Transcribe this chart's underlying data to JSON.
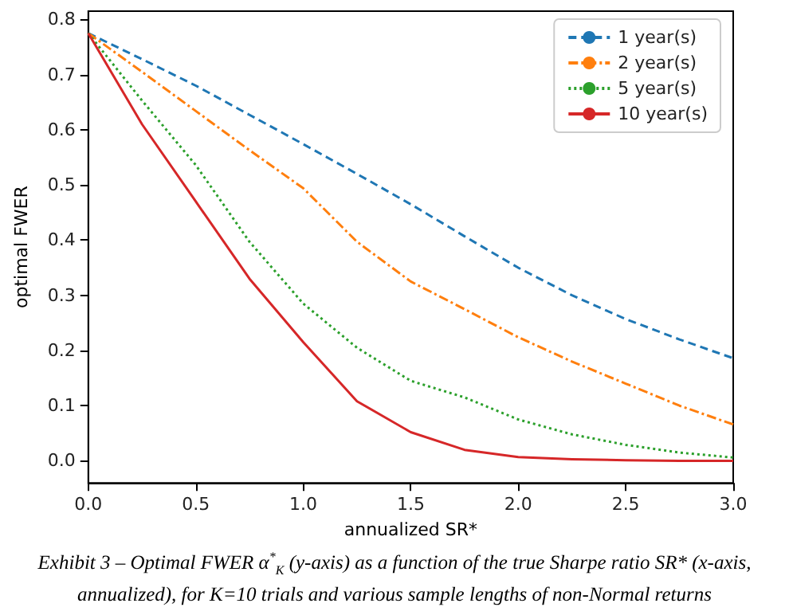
{
  "chart_data": {
    "type": "line",
    "xlabel": "annualized SR*",
    "ylabel": "optimal FWER",
    "annotations": [
      "Exhibit 3 – Optimal FWER α$^{*}$$_{K}$ (y-axis) as a function of the true Sharpe ratio SR* (x-axis, annualized), for K=10 trials and various sample lengths of non-Normal returns"
    ],
    "x": [
      0,
      0.25,
      0.5,
      0.75,
      1.0,
      1.25,
      1.5,
      1.75,
      2.0,
      2.25,
      2.5,
      2.75,
      3.0
    ],
    "series": [
      {
        "name": "1 year(s)",
        "color": "#1f77b4",
        "line_style": "dashed",
        "values": [
          0.775,
          0.728,
          0.68,
          0.627,
          0.574,
          0.52,
          0.465,
          0.407,
          0.35,
          0.3,
          0.257,
          0.22,
          0.186
        ]
      },
      {
        "name": "2 year(s)",
        "color": "#ff7f0e",
        "line_style": "dashdot",
        "values": [
          0.775,
          0.705,
          0.634,
          0.563,
          0.494,
          0.397,
          0.325,
          0.275,
          0.224,
          0.18,
          0.14,
          0.1,
          0.066
        ]
      },
      {
        "name": "5 year(s)",
        "color": "#2ca02c",
        "line_style": "dotted",
        "values": [
          0.775,
          0.653,
          0.536,
          0.397,
          0.285,
          0.205,
          0.145,
          0.115,
          0.075,
          0.048,
          0.029,
          0.015,
          0.006
        ]
      },
      {
        "name": "10 year(s)",
        "color": "#d62728",
        "line_style": "solid",
        "values": [
          0.775,
          0.61,
          0.47,
          0.33,
          0.215,
          0.108,
          0.052,
          0.02,
          0.007,
          0.003,
          0.001,
          0.0,
          0.0
        ]
      }
    ],
    "xlim": [
      0,
      3
    ],
    "xticks": [
      {
        "value": 0,
        "label": "0.0"
      },
      0.5,
      {
        "value": 1,
        "label": "1.0"
      },
      1.5,
      {
        "value": 2,
        "label": "2.0"
      },
      2.5,
      {
        "value": 3,
        "label": "3.0"
      }
    ],
    "ylim": [
      -0.04,
      0.815
    ],
    "yticks": [
      {
        "value": 0,
        "label": "0.0"
      },
      0.1,
      0.2,
      0.3,
      0.4,
      0.5,
      0.6,
      0.7,
      0.8
    ],
    "legend": "top right",
    "grid": false,
    "marker": "none"
  }
}
